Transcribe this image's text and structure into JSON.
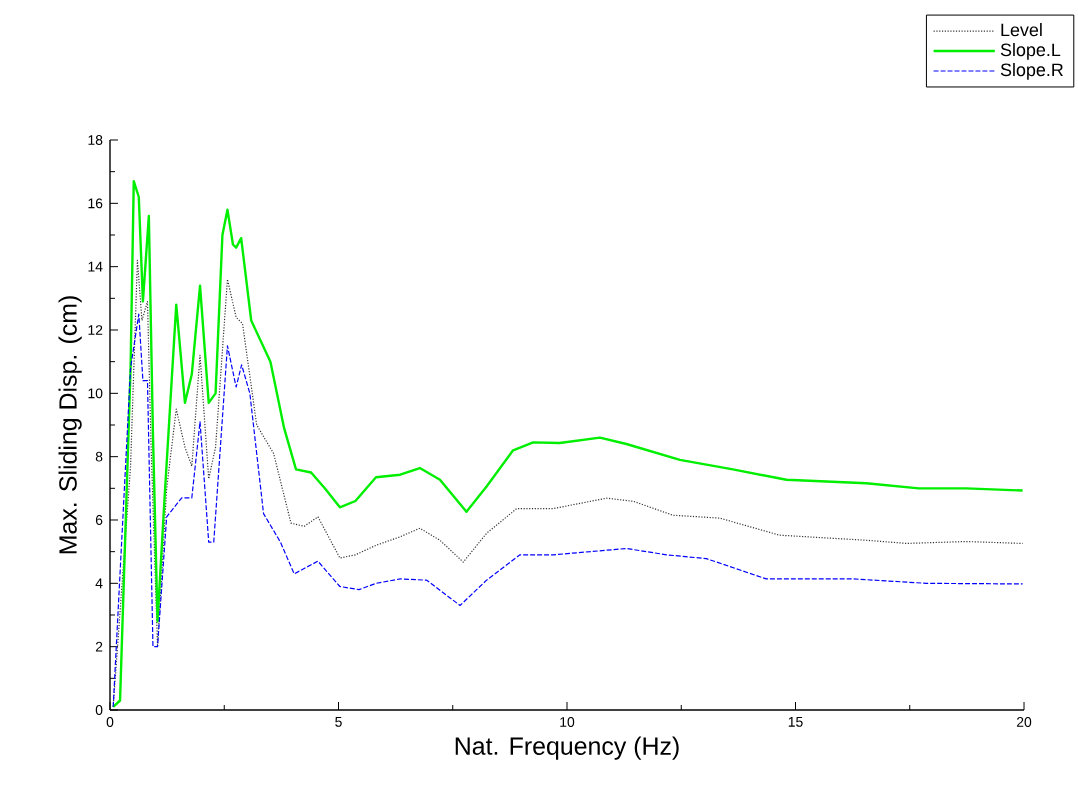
{
  "chart_data": {
    "type": "line",
    "xlabel": "Nat. Frequency (Hz)",
    "ylabel": "Max. Sliding Disp. (cm)",
    "xlim": [
      0,
      20
    ],
    "ylim": [
      0,
      18
    ],
    "xticks": [
      0,
      5,
      10,
      15,
      20
    ],
    "yticks": [
      0,
      2,
      4,
      6,
      8,
      10,
      12,
      14,
      16,
      18
    ],
    "grid": false,
    "legend": "top right",
    "marker": "none",
    "series": [
      {
        "name": "Level",
        "color": "#333333",
        "line_style": "dotted",
        "x": [
          0.07,
          0.45,
          0.6,
          0.7,
          0.82,
          0.9,
          1.04,
          1.24,
          1.45,
          1.64,
          1.79,
          1.97,
          2.16,
          2.31,
          2.57,
          2.76,
          2.9,
          3.21,
          3.58,
          3.96,
          4.25,
          4.55,
          5.03,
          5.37,
          5.82,
          6.35,
          6.78,
          7.22,
          7.73,
          8.24,
          8.9,
          9.7,
          10.87,
          11.45,
          12.32,
          13.34,
          14.65,
          16.55,
          17.43,
          18.73,
          19.97
        ],
        "values": [
          0.1,
          7.7,
          14.2,
          12.3,
          12.9,
          8.3,
          2,
          7,
          9.5,
          8.3,
          7.7,
          11.2,
          7.3,
          8.3,
          13.6,
          12.4,
          12.2,
          9,
          8.1,
          5.9,
          5.8,
          6.1,
          4.8,
          4.9,
          5.2,
          5.47,
          5.74,
          5.36,
          4.67,
          5.58,
          6.36,
          6.36,
          6.69,
          6.59,
          6.15,
          6.06,
          5.52,
          5.36,
          5.26,
          5.32,
          5.26
        ]
      },
      {
        "name": "Slope.L",
        "color": "#00ee00",
        "line_style": "solid",
        "x": [
          0.07,
          0.22,
          0.45,
          0.52,
          0.63,
          0.72,
          0.85,
          0.94,
          1.04,
          1.19,
          1.45,
          1.64,
          1.79,
          1.97,
          2.16,
          2.31,
          2.46,
          2.57,
          2.69,
          2.76,
          2.87,
          3.09,
          3.51,
          3.81,
          4.07,
          4.4,
          4.7,
          5.03,
          5.37,
          5.82,
          6.35,
          6.78,
          7.22,
          7.8,
          8.24,
          8.82,
          9.26,
          9.84,
          10.72,
          11.3,
          12.47,
          13.63,
          14.8,
          16.55,
          17.7,
          18.73,
          19.97
        ],
        "values": [
          0.1,
          0.3,
          10.8,
          16.7,
          16.2,
          12.9,
          15.6,
          8.7,
          2.8,
          6.6,
          12.8,
          9.7,
          10.6,
          13.4,
          9.7,
          10,
          15,
          15.8,
          14.7,
          14.6,
          14.9,
          12.3,
          11,
          8.9,
          7.6,
          7.5,
          7,
          6.4,
          6.6,
          7.35,
          7.43,
          7.64,
          7.27,
          6.26,
          7.06,
          8.2,
          8.45,
          8.43,
          8.6,
          8.4,
          7.9,
          7.6,
          7.27,
          7.16,
          7,
          7,
          6.93
        ]
      },
      {
        "name": "Slope.R",
        "color": "#0000ff",
        "line_style": "dashed",
        "x": [
          0.07,
          0.45,
          0.63,
          0.72,
          0.82,
          0.94,
          1.04,
          1.24,
          1.57,
          1.79,
          1.97,
          2.16,
          2.27,
          2.57,
          2.76,
          2.88,
          3.06,
          3.36,
          3.73,
          4.03,
          4.55,
          5.03,
          5.45,
          5.82,
          6.35,
          6.93,
          7.66,
          8.24,
          8.97,
          9.7,
          11.3,
          12.18,
          13.05,
          14.36,
          16.26,
          17.86,
          19.97
        ],
        "values": [
          0.1,
          10.8,
          12.5,
          10.4,
          10.4,
          2,
          2,
          6.1,
          6.7,
          6.7,
          9.1,
          5.3,
          5.3,
          11.5,
          10.2,
          10.9,
          10,
          6.2,
          5.3,
          4.3,
          4.7,
          3.9,
          3.8,
          4,
          4.14,
          4.1,
          3.3,
          4.1,
          4.9,
          4.9,
          5.1,
          4.9,
          4.78,
          4.14,
          4.14,
          4,
          3.98
        ]
      }
    ]
  }
}
